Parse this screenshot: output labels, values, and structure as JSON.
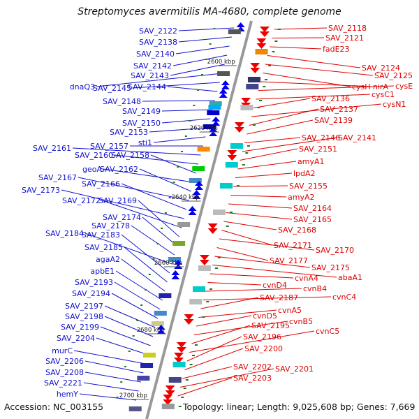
{
  "title": "Streptomyces avermitilis MA-4680, complete genome",
  "footer": {
    "accession": "Accession: NC_003155",
    "topology": "Topology: linear; Length: 9,025,608 bp; Genes: 7,669"
  },
  "scale_labels": [
    "2600 kbp",
    "2620 kbp",
    "2640 kbp",
    "2660 kbp",
    "2680 kbp",
    "2700 kbp"
  ],
  "colors": {
    "left_labels": "#1010cc",
    "right_labels": "#dd0000",
    "chromosome": "#999999",
    "tick": "#1a7a1a"
  },
  "left_genes": [
    "SAV_2122",
    "SAV_2138",
    "SAV_2140",
    "SAV_2142",
    "SAV_2143",
    "dnaQ3",
    "SAV_2145",
    "SAV_2144",
    "SAV_2148",
    "SAV_2149",
    "SAV_2150",
    "SAV_2153",
    "sti1",
    "SAV_2157",
    "SAV_2161",
    "SAV_2160",
    "SAV_2158",
    "geoA",
    "SAV_2162",
    "SAV_2167",
    "SAV_2166",
    "SAV_2173",
    "SAV_2172",
    "SAV_2169",
    "SAV_2174",
    "SAV_2178",
    "SAV_2184",
    "SAV_2183",
    "SAV_2185",
    "agaA2",
    "apbE1",
    "SAV_2193",
    "SAV_2194",
    "SAV_2197",
    "SAV_2198",
    "SAV_2199",
    "SAV_2204",
    "murC",
    "SAV_2206",
    "SAV_2208",
    "SAV_2221",
    "hemY"
  ],
  "right_genes": [
    "SAV_2118",
    "SAV_2121",
    "fadE23",
    "SAV_2124",
    "SAV_2125",
    "cysH",
    "nirA",
    "cysE",
    "cysC1",
    "SAV_2136",
    "cysN1",
    "SAV_2137",
    "SAV_2139",
    "SAV_2146",
    "SAV_2141",
    "SAV_2151",
    "amyA1",
    "lpdA2",
    "SAV_2155",
    "amyA2",
    "SAV_2164",
    "SAV_2165",
    "SAV_2168",
    "SAV_2171",
    "SAV_2170",
    "SAV_2177",
    "SAV_2175",
    "abaA1",
    "cvnA4",
    "cvnD4",
    "cvnB4",
    "cvnC4",
    "SAV_2187",
    "cvnA5",
    "cvnD5",
    "cvnB5",
    "SAV_2195",
    "cvnC5",
    "SAV_2196",
    "SAV_2200",
    "SAV_2202",
    "SAV_2201",
    "SAV_2203"
  ]
}
